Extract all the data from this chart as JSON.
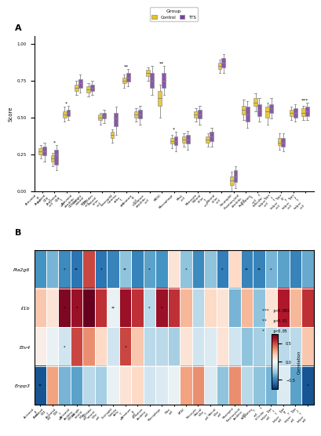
{
  "panel_A": {
    "title": "A",
    "ylabel": "Score",
    "ylim": [
      0.0,
      1.05
    ],
    "categories": [
      "Activated.B.cell",
      "Activated.CD4.T.cell",
      "Activated.CD8.T.cell",
      "Activated.dendritic.cell",
      "CD56bright.natural.killer.cell",
      "CD56dim.natural.killer.cell",
      "Eosinophil",
      "Gamma.delta.T.cell",
      "Immature.B.cell",
      "Immature.dendritic.cell",
      "MDSC",
      "Macrophage",
      "Mast.cell",
      "Monocyte",
      "Natural.killer.T.cell",
      "Natural.killer.cell",
      "Neutrophil",
      "Plasmacytoid.dendritic.cell",
      "Regulatory.T.cell",
      "T.follicular.helper.cell",
      "Type.1.T.helper.cell",
      "Type.17.T.helper.cell",
      "Type.2.T.helper.cell"
    ],
    "control_medians": [
      0.27,
      0.22,
      0.52,
      0.7,
      0.69,
      0.5,
      0.38,
      0.75,
      0.52,
      0.8,
      0.63,
      0.34,
      0.35,
      0.52,
      0.35,
      0.85,
      0.07,
      0.55,
      0.6,
      0.54,
      0.33,
      0.53,
      0.53
    ],
    "tts_medians": [
      0.27,
      0.25,
      0.53,
      0.73,
      0.7,
      0.51,
      0.49,
      0.77,
      0.52,
      0.75,
      0.75,
      0.34,
      0.35,
      0.52,
      0.37,
      0.87,
      0.1,
      0.52,
      0.55,
      0.56,
      0.33,
      0.53,
      0.54
    ],
    "control_q1": [
      0.25,
      0.2,
      0.5,
      0.68,
      0.67,
      0.48,
      0.36,
      0.73,
      0.5,
      0.78,
      0.58,
      0.32,
      0.33,
      0.5,
      0.33,
      0.83,
      0.04,
      0.52,
      0.58,
      0.5,
      0.31,
      0.51,
      0.51
    ],
    "control_q3": [
      0.29,
      0.24,
      0.54,
      0.72,
      0.71,
      0.52,
      0.4,
      0.77,
      0.54,
      0.82,
      0.68,
      0.36,
      0.37,
      0.54,
      0.37,
      0.87,
      0.1,
      0.58,
      0.63,
      0.57,
      0.36,
      0.55,
      0.56
    ],
    "tts_q1": [
      0.24,
      0.18,
      0.51,
      0.7,
      0.68,
      0.49,
      0.44,
      0.74,
      0.49,
      0.7,
      0.7,
      0.31,
      0.32,
      0.49,
      0.34,
      0.84,
      0.06,
      0.47,
      0.51,
      0.53,
      0.3,
      0.5,
      0.51
    ],
    "tts_q3": [
      0.3,
      0.28,
      0.55,
      0.76,
      0.72,
      0.53,
      0.53,
      0.8,
      0.55,
      0.8,
      0.8,
      0.37,
      0.38,
      0.55,
      0.4,
      0.9,
      0.14,
      0.57,
      0.59,
      0.59,
      0.36,
      0.56,
      0.57
    ],
    "control_whislo": [
      0.22,
      0.17,
      0.47,
      0.65,
      0.64,
      0.45,
      0.33,
      0.7,
      0.47,
      0.75,
      0.5,
      0.29,
      0.3,
      0.47,
      0.3,
      0.8,
      0.0,
      0.48,
      0.54,
      0.45,
      0.28,
      0.48,
      0.48
    ],
    "control_whishi": [
      0.31,
      0.26,
      0.57,
      0.75,
      0.73,
      0.53,
      0.42,
      0.79,
      0.56,
      0.84,
      0.72,
      0.38,
      0.39,
      0.56,
      0.39,
      0.89,
      0.13,
      0.62,
      0.66,
      0.6,
      0.39,
      0.57,
      0.58
    ],
    "tts_whislo": [
      0.2,
      0.14,
      0.48,
      0.67,
      0.65,
      0.46,
      0.38,
      0.71,
      0.45,
      0.65,
      0.65,
      0.27,
      0.28,
      0.45,
      0.3,
      0.8,
      0.02,
      0.43,
      0.47,
      0.49,
      0.27,
      0.47,
      0.48
    ],
    "tts_whishi": [
      0.33,
      0.31,
      0.58,
      0.79,
      0.75,
      0.55,
      0.57,
      0.83,
      0.58,
      0.85,
      0.85,
      0.4,
      0.41,
      0.58,
      0.43,
      0.93,
      0.17,
      0.61,
      0.63,
      0.63,
      0.39,
      0.59,
      0.6
    ],
    "significance": [
      "",
      "*",
      "*",
      "",
      "",
      "",
      "",
      "**",
      "",
      "",
      "**",
      "*",
      "",
      "",
      "",
      "",
      "",
      "",
      "",
      "",
      "",
      "",
      "***"
    ],
    "control_color": "#E6C220",
    "tts_color": "#7B3FA0",
    "box_width": 0.35
  },
  "panel_B": {
    "title": "B",
    "genes": [
      "Pla2g6",
      "Il1b",
      "Etv4",
      "Enpp3"
    ],
    "immune_cells": [
      "Activated.B.cell",
      "Activated.CD4.T.cell",
      "Activated.CD8.T.cell",
      "Activated.dendritic.cell",
      "CD56bright.natural.killer.cell",
      "CD56dim.natural.killer.cell",
      "Eosinophil",
      "Gamma.delta.T.cell",
      "Immature.B.cell",
      "Immature.dendritic.cell",
      "Macrophage",
      "Mast.cell",
      "MDSC",
      "Monocyte",
      "Natural.killer.T.cell",
      "Natural.killer.cell",
      "Neutrophil",
      "Plasmacytoid.dendritic.cell",
      "Regulatory.T.cell",
      "T.follicular.helper.cell",
      "Type.1.T.helper.cell",
      "Type.17.T.helper.cell",
      "Type.2.T.helper.cell"
    ],
    "correlations": [
      [
        -0.45,
        -0.35,
        -0.48,
        -0.55,
        0.5,
        -0.55,
        -0.5,
        -0.3,
        -0.5,
        -0.4,
        -0.45,
        0.1,
        -0.3,
        -0.48,
        -0.3,
        -0.52,
        0.15,
        -0.5,
        -0.5,
        -0.35,
        -0.4,
        -0.5,
        -0.38
      ],
      [
        0.2,
        0.1,
        0.7,
        0.65,
        0.9,
        0.55,
        -0.05,
        0.65,
        0.55,
        -0.2,
        0.65,
        0.55,
        0.25,
        -0.2,
        0.15,
        0.1,
        -0.35,
        0.25,
        -0.3,
        0.1,
        0.6,
        0.25,
        0.55
      ],
      [
        0.05,
        -0.05,
        -0.15,
        0.5,
        0.35,
        0.15,
        -0.15,
        0.5,
        0.2,
        -0.2,
        -0.2,
        -0.25,
        0.1,
        -0.15,
        -0.1,
        0.1,
        -0.15,
        -0.3,
        -0.25,
        -0.2,
        -0.2,
        -0.2,
        0.2
      ],
      [
        -0.65,
        0.3,
        -0.35,
        -0.4,
        -0.2,
        -0.25,
        -0.05,
        0.1,
        0.15,
        -0.15,
        -0.1,
        -0.05,
        0.3,
        0.35,
        -0.1,
        -0.3,
        0.35,
        -0.2,
        -0.3,
        -0.35,
        -0.1,
        -0.4,
        -0.65
      ]
    ],
    "significance_map": [
      [
        "",
        "",
        "*",
        "**",
        "",
        "*",
        "",
        "**",
        "",
        "*",
        "",
        "",
        "*",
        "",
        "",
        "*",
        "",
        "**",
        "**",
        "*",
        "",
        "",
        ""
      ],
      [
        "",
        "",
        "*",
        "*",
        "",
        "",
        "**",
        "",
        "",
        "*",
        "*",
        "",
        "",
        "",
        "",
        "",
        "",
        "",
        "",
        "",
        "",
        "",
        ""
      ],
      [
        "",
        "",
        "*",
        "",
        "",
        "",
        "",
        "*",
        "",
        "",
        "",
        "",
        "",
        "",
        "",
        "",
        "",
        "",
        "",
        "",
        "",
        "",
        ""
      ],
      [
        "**",
        "",
        "",
        "",
        "",
        "",
        "",
        "",
        "",
        "",
        "",
        "",
        "",
        "",
        "",
        "",
        "",
        "",
        "",
        "",
        "",
        "",
        "*"
      ]
    ],
    "cmap": "RdBu_r",
    "vmin": -0.75,
    "vmax": 0.75
  }
}
